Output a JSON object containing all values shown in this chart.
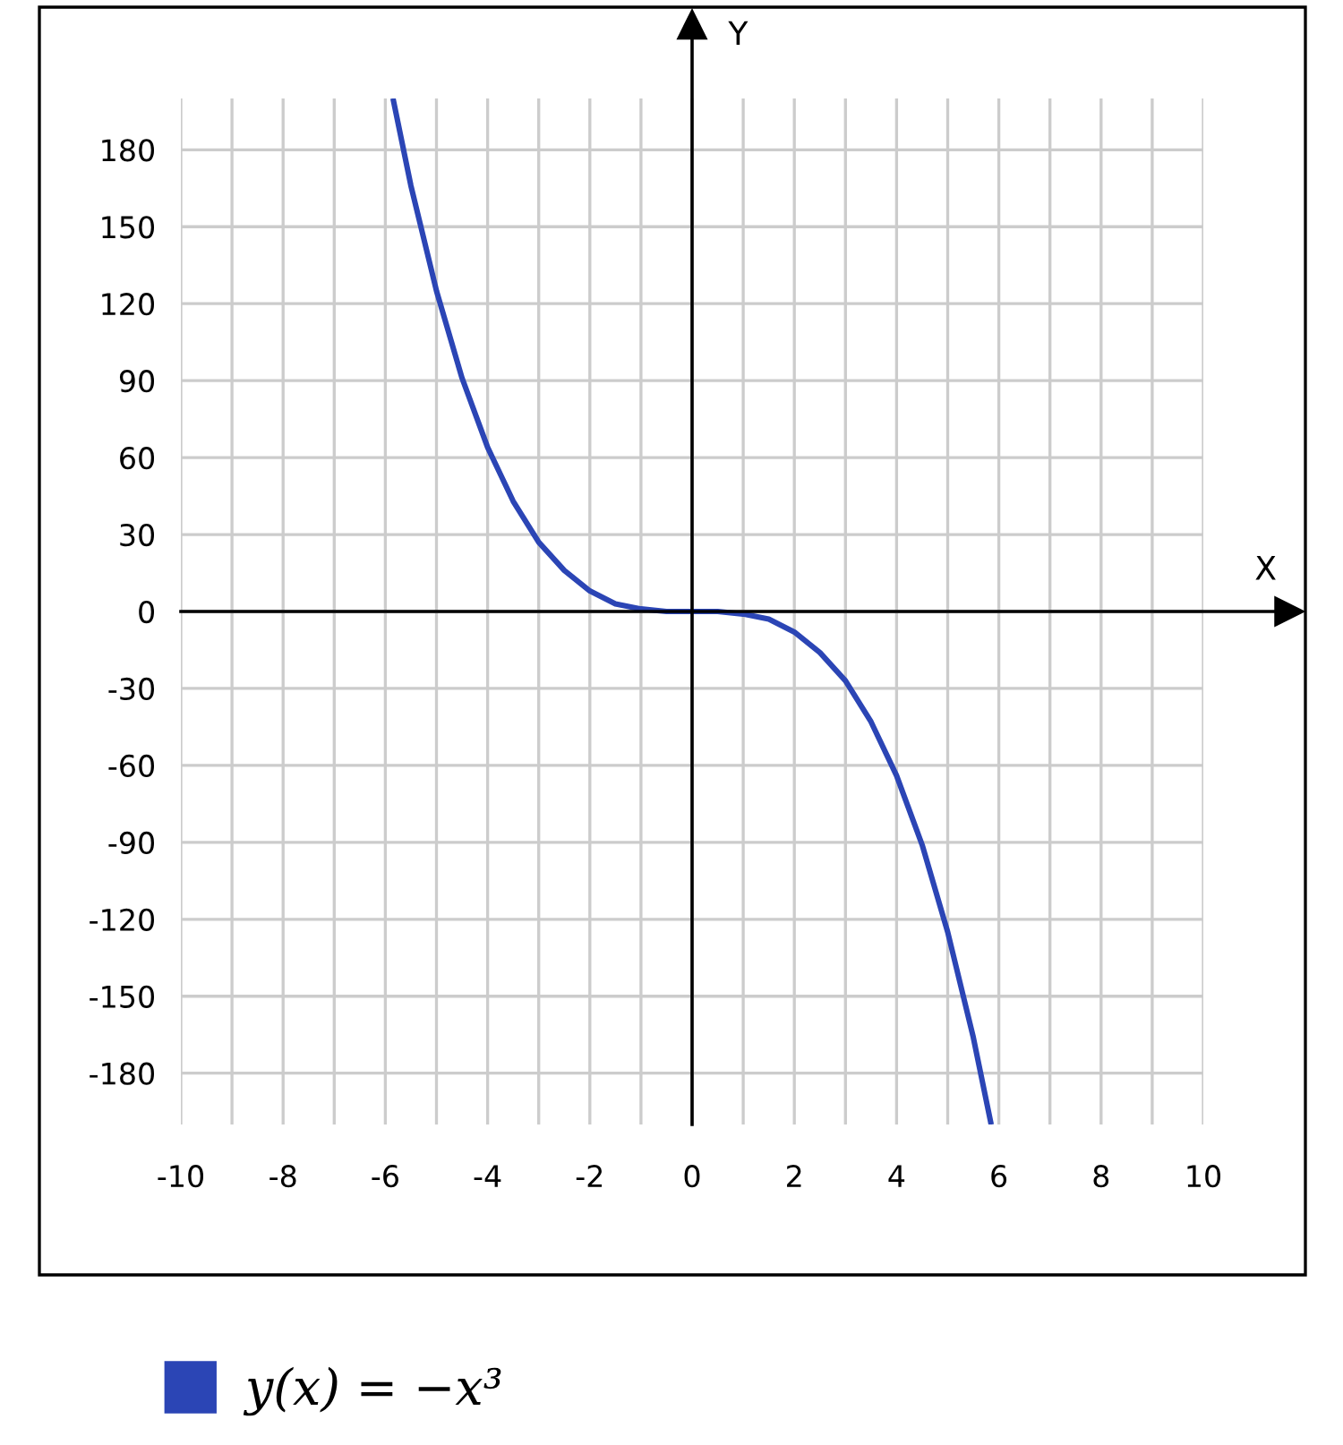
{
  "chart_data": {
    "type": "line",
    "x": [
      -5.84,
      -5.5,
      -5.0,
      -4.5,
      -4.0,
      -3.5,
      -3.0,
      -2.5,
      -2.0,
      -1.5,
      -1.0,
      -0.5,
      0.0,
      0.5,
      1.0,
      1.5,
      2.0,
      2.5,
      3.0,
      3.5,
      4.0,
      4.5,
      5.0,
      5.5,
      5.84
    ],
    "series": [
      {
        "name": "y(x) = −x³",
        "color": "#2b45b5",
        "values": [
          199,
          166,
          125,
          91,
          64,
          43,
          27,
          16,
          8,
          3,
          1,
          0,
          0,
          0,
          -1,
          -3,
          -8,
          -16,
          -27,
          -43,
          -64,
          -91,
          -125,
          -166,
          -199
        ]
      }
    ],
    "xlim": [
      -10,
      10
    ],
    "xticks": [
      -10,
      {
        "value": -9,
        "label": null
      },
      -8,
      {
        "value": -7,
        "label": null
      },
      -6,
      {
        "value": -5,
        "label": null
      },
      -4,
      {
        "value": -3,
        "label": null
      },
      -2,
      {
        "value": -1,
        "label": null
      },
      0,
      {
        "value": 1,
        "label": null
      },
      2,
      {
        "value": 3,
        "label": null
      },
      4,
      {
        "value": 5,
        "label": null
      },
      6,
      {
        "value": 7,
        "label": null
      },
      8,
      {
        "value": 9,
        "label": null
      },
      10
    ],
    "ylim": [
      -200,
      200
    ],
    "yticks": [
      -180,
      -150,
      -120,
      -90,
      -60,
      -30,
      0,
      30,
      60,
      90,
      120,
      150,
      180
    ],
    "xlabel": "X",
    "ylabel": "Y",
    "grid": true,
    "legend": "bottom",
    "marker": "none",
    "line_style": "solid"
  }
}
